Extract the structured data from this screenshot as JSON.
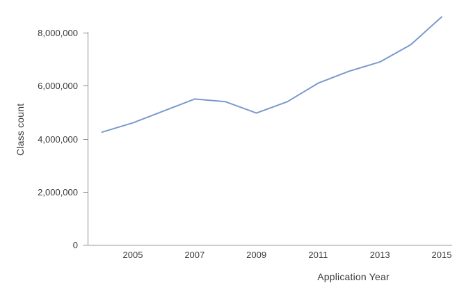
{
  "chart": {
    "background": "#ffffff",
    "line_color": "#7b99ce",
    "axis_color": "#8a8a8a",
    "text_color": "#3a3a3a"
  },
  "chart_data": {
    "type": "line",
    "title": "",
    "xlabel": "Application Year",
    "ylabel": "Class count",
    "x": [
      2004,
      2005,
      2006,
      2007,
      2008,
      2009,
      2010,
      2011,
      2012,
      2013,
      2014,
      2015
    ],
    "series": [
      {
        "name": "Class count",
        "values": [
          4250000,
          4600000,
          5050000,
          5500000,
          5400000,
          4970000,
          5400000,
          6100000,
          6550000,
          6900000,
          7550000,
          8600000
        ]
      }
    ],
    "x_ticks": [
      {
        "value": 2005,
        "label": "2005"
      },
      {
        "value": 2007,
        "label": "2007"
      },
      {
        "value": 2009,
        "label": "2009"
      },
      {
        "value": 2011,
        "label": "2011"
      },
      {
        "value": 2013,
        "label": "2013"
      },
      {
        "value": 2015,
        "label": "2015"
      }
    ],
    "y_ticks": [
      {
        "value": 0,
        "label": "0"
      },
      {
        "value": 2000000,
        "label": "2,000,000"
      },
      {
        "value": 4000000,
        "label": "4,000,000"
      },
      {
        "value": 6000000,
        "label": "6,000,000"
      },
      {
        "value": 8000000,
        "label": "8,000,000"
      }
    ],
    "xlim": [
      2004,
      2015.35
    ],
    "ylim": [
      0,
      8030000
    ],
    "grid": false,
    "legend": "none"
  }
}
